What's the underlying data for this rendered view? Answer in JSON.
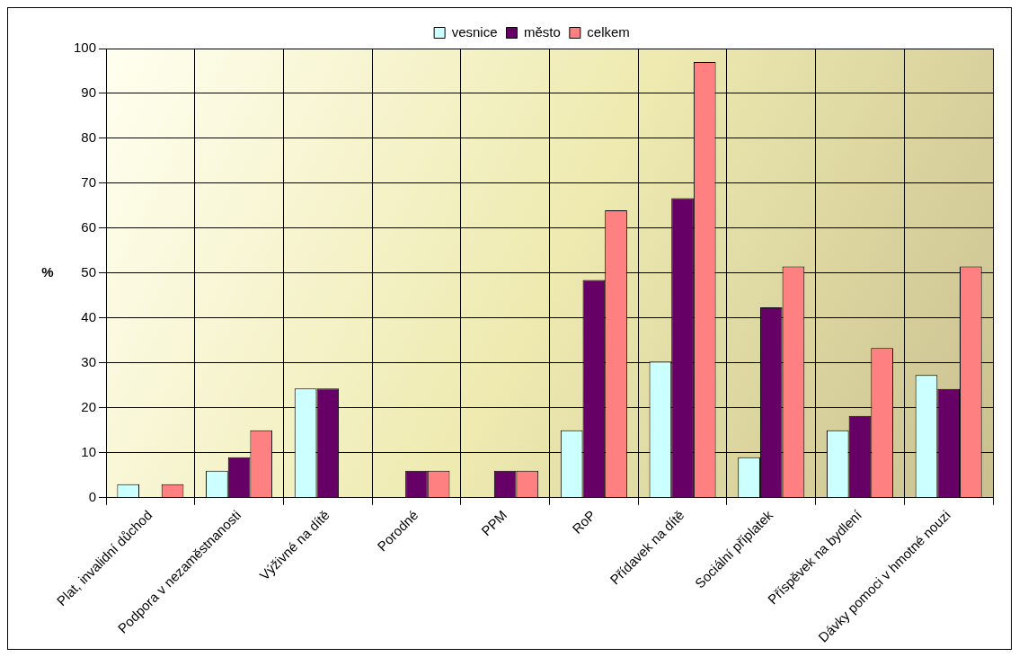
{
  "chart_data": {
    "type": "bar",
    "ylabel": "%",
    "categories": [
      "Plat, invalidní důchod",
      "Podpora v nezaměstnanosti",
      "Výživné na dítě",
      "Porodné",
      "PPM",
      "RoP",
      "Přídavek na dítě",
      "Sociální příplatek",
      "Příspěvek na bydlení",
      "Dávky pomoci v hmotné nouzi"
    ],
    "series": [
      {
        "name": "vesnice",
        "color": "#ccffff",
        "values": [
          3,
          6,
          24.3,
          0,
          0,
          15,
          30.3,
          9,
          15,
          27.3
        ]
      },
      {
        "name": "město",
        "color": "#660066",
        "values": [
          0,
          9,
          24.3,
          6,
          6,
          48.5,
          66.7,
          42.4,
          18.2,
          24.2
        ]
      },
      {
        "name": "celkem",
        "color": "#ff8080",
        "values": [
          3,
          15,
          0,
          6,
          6,
          64,
          97,
          51.5,
          33.3,
          51.5
        ]
      }
    ],
    "ylim": [
      0,
      100
    ],
    "yticks": [
      0,
      10,
      20,
      30,
      40,
      50,
      60,
      70,
      80,
      90,
      100
    ],
    "grid": true,
    "legend": "top"
  }
}
